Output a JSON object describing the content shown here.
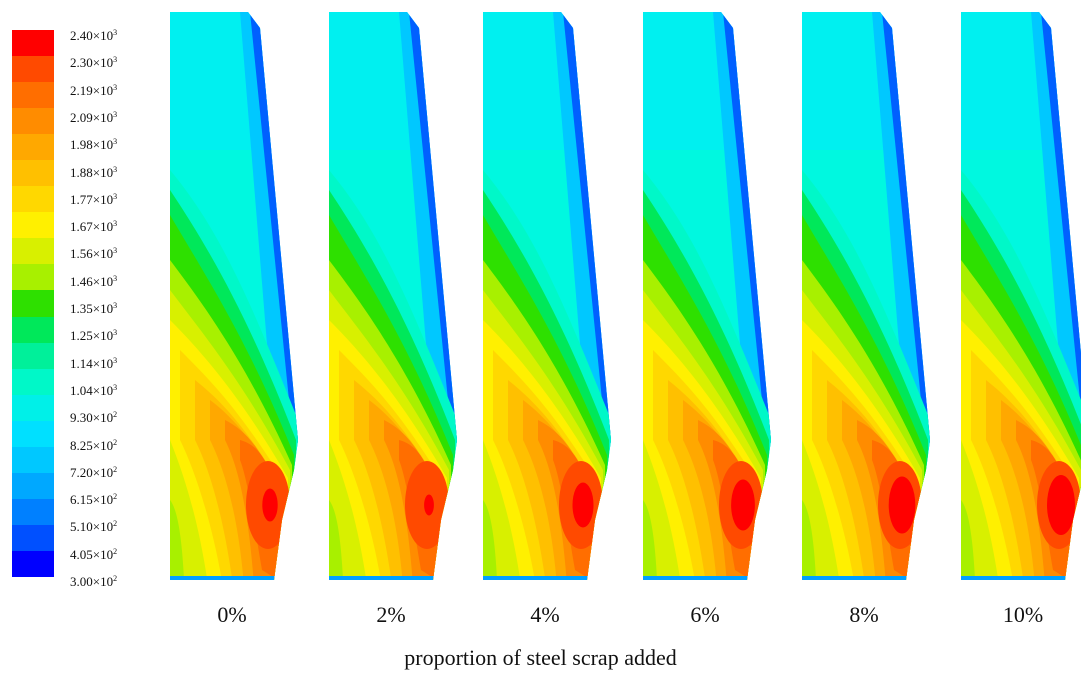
{
  "legend": {
    "ticks": [
      {
        "mantissa": "2.40",
        "exp": "3"
      },
      {
        "mantissa": "2.30",
        "exp": "3"
      },
      {
        "mantissa": "2.19",
        "exp": "3"
      },
      {
        "mantissa": "2.09",
        "exp": "3"
      },
      {
        "mantissa": "1.98",
        "exp": "3"
      },
      {
        "mantissa": "1.88",
        "exp": "3"
      },
      {
        "mantissa": "1.77",
        "exp": "3"
      },
      {
        "mantissa": "1.67",
        "exp": "3"
      },
      {
        "mantissa": "1.56",
        "exp": "3"
      },
      {
        "mantissa": "1.46",
        "exp": "3"
      },
      {
        "mantissa": "1.35",
        "exp": "3"
      },
      {
        "mantissa": "1.25",
        "exp": "3"
      },
      {
        "mantissa": "1.14",
        "exp": "3"
      },
      {
        "mantissa": "1.04",
        "exp": "3"
      },
      {
        "mantissa": "9.30",
        "exp": "2"
      },
      {
        "mantissa": "8.25",
        "exp": "2"
      },
      {
        "mantissa": "7.20",
        "exp": "2"
      },
      {
        "mantissa": "6.15",
        "exp": "2"
      },
      {
        "mantissa": "5.10",
        "exp": "2"
      },
      {
        "mantissa": "4.05",
        "exp": "2"
      },
      {
        "mantissa": "3.00",
        "exp": "2"
      }
    ],
    "colors": [
      "#ff0000",
      "#ff4a00",
      "#ff6e00",
      "#ff8c00",
      "#ffa800",
      "#ffc000",
      "#ffd800",
      "#fff000",
      "#d8f000",
      "#a8f000",
      "#2ee000",
      "#00e85a",
      "#00f09a",
      "#00f8c8",
      "#00f0e8",
      "#00e0ff",
      "#00c8ff",
      "#00a8ff",
      "#0080ff",
      "#0050ff",
      "#0000ff"
    ]
  },
  "cases": [
    "0%",
    "2%",
    "4%",
    "6%",
    "8%",
    "10%"
  ],
  "hotspot_size": [
    0.55,
    0.35,
    0.75,
    0.85,
    0.95,
    1.0
  ],
  "xaxis_label": "proportion of steel scrap added"
}
